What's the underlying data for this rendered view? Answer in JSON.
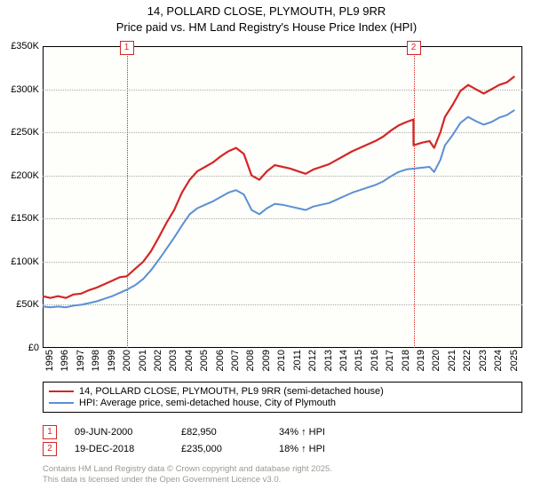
{
  "title_line1": "14, POLLARD CLOSE, PLYMOUTH, PL9 9RR",
  "title_line2": "Price paid vs. HM Land Registry's House Price Index (HPI)",
  "chart": {
    "type": "line",
    "background_color": "#fefefa",
    "grid_color": "#aaaaaa",
    "xlim": [
      1995,
      2026
    ],
    "ylim": [
      0,
      350000
    ],
    "ytick_step": 50000,
    "ytick_labels": [
      "£0",
      "£50K",
      "£100K",
      "£150K",
      "£200K",
      "£250K",
      "£300K",
      "£350K"
    ],
    "xtick_step": 1,
    "xtick_labels": [
      "1995",
      "1996",
      "1997",
      "1998",
      "1999",
      "2000",
      "2001",
      "2002",
      "2003",
      "2004",
      "2005",
      "2006",
      "2007",
      "2008",
      "2009",
      "2010",
      "2011",
      "2012",
      "2013",
      "2014",
      "2015",
      "2016",
      "2017",
      "2018",
      "2019",
      "2020",
      "2021",
      "2022",
      "2023",
      "2024",
      "2025"
    ],
    "series": [
      {
        "name": "14, POLLARD CLOSE, PLYMOUTH, PL9 9RR (semi-detached house)",
        "color": "#d32626",
        "line_width": 2.2,
        "points": [
          [
            1995,
            60000
          ],
          [
            1995.5,
            58000
          ],
          [
            1996,
            60000
          ],
          [
            1996.5,
            58000
          ],
          [
            1997,
            62000
          ],
          [
            1997.5,
            63000
          ],
          [
            1998,
            67000
          ],
          [
            1998.5,
            70000
          ],
          [
            1999,
            74000
          ],
          [
            1999.5,
            78000
          ],
          [
            2000,
            82000
          ],
          [
            2000.43,
            82950
          ],
          [
            2001,
            92000
          ],
          [
            2001.5,
            100000
          ],
          [
            2002,
            112000
          ],
          [
            2002.5,
            128000
          ],
          [
            2003,
            145000
          ],
          [
            2003.5,
            160000
          ],
          [
            2004,
            180000
          ],
          [
            2004.5,
            195000
          ],
          [
            2005,
            205000
          ],
          [
            2005.5,
            210000
          ],
          [
            2006,
            215000
          ],
          [
            2006.5,
            222000
          ],
          [
            2007,
            228000
          ],
          [
            2007.5,
            232000
          ],
          [
            2008,
            225000
          ],
          [
            2008.5,
            200000
          ],
          [
            2009,
            195000
          ],
          [
            2009.5,
            205000
          ],
          [
            2010,
            212000
          ],
          [
            2010.5,
            210000
          ],
          [
            2011,
            208000
          ],
          [
            2011.5,
            205000
          ],
          [
            2012,
            202000
          ],
          [
            2012.5,
            207000
          ],
          [
            2013,
            210000
          ],
          [
            2013.5,
            213000
          ],
          [
            2014,
            218000
          ],
          [
            2014.5,
            223000
          ],
          [
            2015,
            228000
          ],
          [
            2015.5,
            232000
          ],
          [
            2016,
            236000
          ],
          [
            2016.5,
            240000
          ],
          [
            2017,
            245000
          ],
          [
            2017.5,
            252000
          ],
          [
            2018,
            258000
          ],
          [
            2018.5,
            262000
          ],
          [
            2018.96,
            265000
          ],
          [
            2018.97,
            235000
          ],
          [
            2019.5,
            238000
          ],
          [
            2020,
            240000
          ],
          [
            2020.3,
            232000
          ],
          [
            2020.7,
            250000
          ],
          [
            2021,
            268000
          ],
          [
            2021.5,
            282000
          ],
          [
            2022,
            298000
          ],
          [
            2022.5,
            305000
          ],
          [
            2023,
            300000
          ],
          [
            2023.5,
            295000
          ],
          [
            2024,
            300000
          ],
          [
            2024.5,
            305000
          ],
          [
            2025,
            308000
          ],
          [
            2025.5,
            315000
          ]
        ]
      },
      {
        "name": "HPI: Average price, semi-detached house, City of Plymouth",
        "color": "#5b8fd6",
        "line_width": 2,
        "points": [
          [
            1995,
            48000
          ],
          [
            1995.5,
            47000
          ],
          [
            1996,
            48000
          ],
          [
            1996.5,
            47000
          ],
          [
            1997,
            49000
          ],
          [
            1997.5,
            50000
          ],
          [
            1998,
            52000
          ],
          [
            1998.5,
            54000
          ],
          [
            1999,
            57000
          ],
          [
            1999.5,
            60000
          ],
          [
            2000,
            64000
          ],
          [
            2000.5,
            68000
          ],
          [
            2001,
            73000
          ],
          [
            2001.5,
            80000
          ],
          [
            2002,
            90000
          ],
          [
            2002.5,
            102000
          ],
          [
            2003,
            115000
          ],
          [
            2003.5,
            128000
          ],
          [
            2004,
            142000
          ],
          [
            2004.5,
            155000
          ],
          [
            2005,
            162000
          ],
          [
            2005.5,
            166000
          ],
          [
            2006,
            170000
          ],
          [
            2006.5,
            175000
          ],
          [
            2007,
            180000
          ],
          [
            2007.5,
            183000
          ],
          [
            2008,
            178000
          ],
          [
            2008.5,
            160000
          ],
          [
            2009,
            155000
          ],
          [
            2009.5,
            162000
          ],
          [
            2010,
            167000
          ],
          [
            2010.5,
            166000
          ],
          [
            2011,
            164000
          ],
          [
            2011.5,
            162000
          ],
          [
            2012,
            160000
          ],
          [
            2012.5,
            164000
          ],
          [
            2013,
            166000
          ],
          [
            2013.5,
            168000
          ],
          [
            2014,
            172000
          ],
          [
            2014.5,
            176000
          ],
          [
            2015,
            180000
          ],
          [
            2015.5,
            183000
          ],
          [
            2016,
            186000
          ],
          [
            2016.5,
            189000
          ],
          [
            2017,
            193000
          ],
          [
            2017.5,
            199000
          ],
          [
            2018,
            204000
          ],
          [
            2018.5,
            207000
          ],
          [
            2019,
            208000
          ],
          [
            2019.5,
            209000
          ],
          [
            2020,
            210000
          ],
          [
            2020.3,
            204000
          ],
          [
            2020.7,
            218000
          ],
          [
            2021,
            235000
          ],
          [
            2021.5,
            247000
          ],
          [
            2022,
            261000
          ],
          [
            2022.5,
            268000
          ],
          [
            2023,
            263000
          ],
          [
            2023.5,
            259000
          ],
          [
            2024,
            262000
          ],
          [
            2024.5,
            267000
          ],
          [
            2025,
            270000
          ],
          [
            2025.5,
            276000
          ]
        ]
      }
    ],
    "markers": [
      {
        "id": "1",
        "x": 2000.43,
        "color": "#d32626"
      },
      {
        "id": "2",
        "x": 2018.97,
        "color": "#d32626"
      }
    ]
  },
  "legend": [
    {
      "color": "#d32626",
      "label": "14, POLLARD CLOSE, PLYMOUTH, PL9 9RR (semi-detached house)"
    },
    {
      "color": "#5b8fd6",
      "label": "HPI: Average price, semi-detached house, City of Plymouth"
    }
  ],
  "events": [
    {
      "id": "1",
      "date": "09-JUN-2000",
      "price": "£82,950",
      "delta": "34% ↑ HPI"
    },
    {
      "id": "2",
      "date": "19-DEC-2018",
      "price": "£235,000",
      "delta": "18% ↑ HPI"
    }
  ],
  "footer_line1": "Contains HM Land Registry data © Crown copyright and database right 2025.",
  "footer_line2": "This data is licensed under the Open Government Licence v3.0."
}
